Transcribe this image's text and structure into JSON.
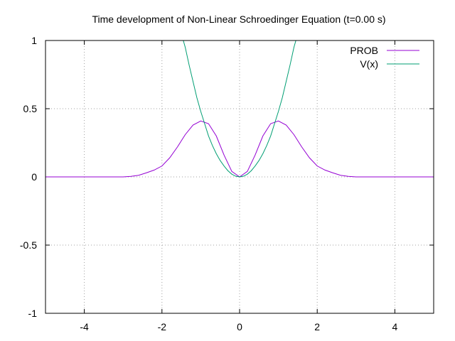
{
  "chart_data": {
    "type": "line",
    "title": "Time development of Non-Linear Schroedinger Equation (t=0.00 s)",
    "xlabel": "",
    "ylabel": "",
    "xlim": [
      -5,
      5
    ],
    "ylim": [
      -1,
      1
    ],
    "x_ticks": [
      -4,
      -2,
      0,
      2,
      4
    ],
    "y_ticks": [
      -1,
      -0.5,
      0,
      0.5,
      1
    ],
    "grid": true,
    "legend_position": "top-right",
    "series": [
      {
        "name": "PROB",
        "color": "#9400d3",
        "x": [
          -5.0,
          -4.5,
          -4.0,
          -3.5,
          -3.0,
          -2.8,
          -2.6,
          -2.4,
          -2.2,
          -2.0,
          -1.8,
          -1.6,
          -1.4,
          -1.2,
          -1.0,
          -0.8,
          -0.6,
          -0.4,
          -0.2,
          0.0,
          0.2,
          0.4,
          0.6,
          0.8,
          1.0,
          1.2,
          1.4,
          1.6,
          1.8,
          2.0,
          2.2,
          2.4,
          2.6,
          2.8,
          3.0,
          3.5,
          4.0,
          4.5,
          5.0
        ],
        "y": [
          0.0,
          0.0,
          0.0,
          0.0,
          0.0,
          0.004,
          0.012,
          0.03,
          0.05,
          0.08,
          0.14,
          0.22,
          0.31,
          0.38,
          0.41,
          0.39,
          0.3,
          0.16,
          0.04,
          0.0,
          0.04,
          0.16,
          0.3,
          0.39,
          0.41,
          0.38,
          0.31,
          0.22,
          0.14,
          0.08,
          0.05,
          0.03,
          0.012,
          0.004,
          0.0,
          0.0,
          0.0,
          0.0,
          0.0
        ]
      },
      {
        "name": "V(x)",
        "color": "#009e73",
        "x": [
          -1.45,
          -1.4,
          -1.3,
          -1.2,
          -1.1,
          -1.0,
          -0.9,
          -0.8,
          -0.7,
          -0.6,
          -0.5,
          -0.4,
          -0.3,
          -0.2,
          -0.1,
          0.0,
          0.1,
          0.2,
          0.3,
          0.4,
          0.5,
          0.6,
          0.7,
          0.8,
          0.9,
          1.0,
          1.1,
          1.2,
          1.3,
          1.4,
          1.45
        ],
        "y": [
          1.0,
          0.95,
          0.82,
          0.7,
          0.58,
          0.48,
          0.39,
          0.3,
          0.23,
          0.17,
          0.12,
          0.08,
          0.045,
          0.02,
          0.005,
          0.0,
          0.005,
          0.02,
          0.045,
          0.08,
          0.12,
          0.17,
          0.23,
          0.3,
          0.39,
          0.48,
          0.58,
          0.7,
          0.82,
          0.95,
          1.0
        ]
      }
    ]
  }
}
